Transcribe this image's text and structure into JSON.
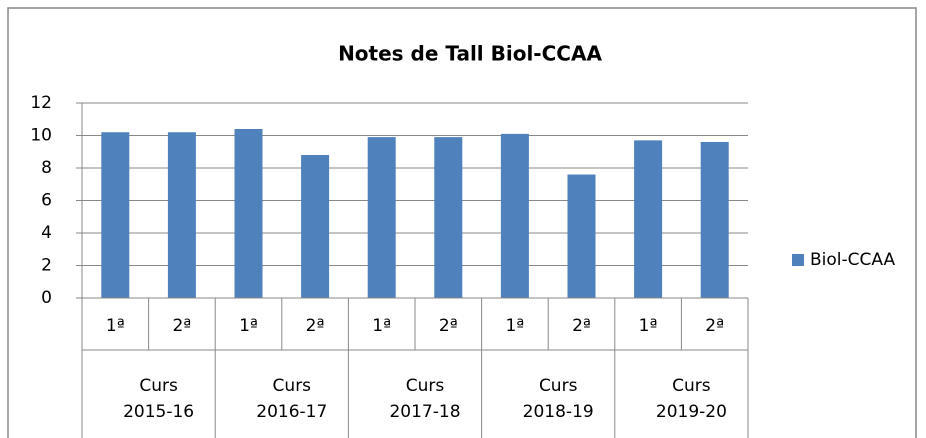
{
  "chart_data": {
    "type": "bar",
    "title": "Notes de Tall Biol-CCAA",
    "categories": [
      "1ª",
      "2ª",
      "1ª",
      "2ª",
      "1ª",
      "2ª",
      "1ª",
      "2ª",
      "1ª",
      "2ª"
    ],
    "groups": [
      [
        "Curs",
        "2015-16"
      ],
      [
        "Curs",
        "2016-17"
      ],
      [
        "Curs",
        "2017-18"
      ],
      [
        "Curs",
        "2018-19"
      ],
      [
        "Curs",
        "2019-20"
      ]
    ],
    "series": [
      {
        "name": "Biol-CCAA",
        "color": "#4f81bd",
        "values": [
          10.2,
          10.2,
          10.4,
          8.8,
          9.9,
          9.9,
          10.1,
          7.6,
          9.7,
          9.6
        ]
      }
    ],
    "ylim": [
      0,
      12
    ],
    "yticks": [
      0,
      2,
      4,
      6,
      8,
      10,
      12
    ],
    "grid": true,
    "legend": "right"
  }
}
